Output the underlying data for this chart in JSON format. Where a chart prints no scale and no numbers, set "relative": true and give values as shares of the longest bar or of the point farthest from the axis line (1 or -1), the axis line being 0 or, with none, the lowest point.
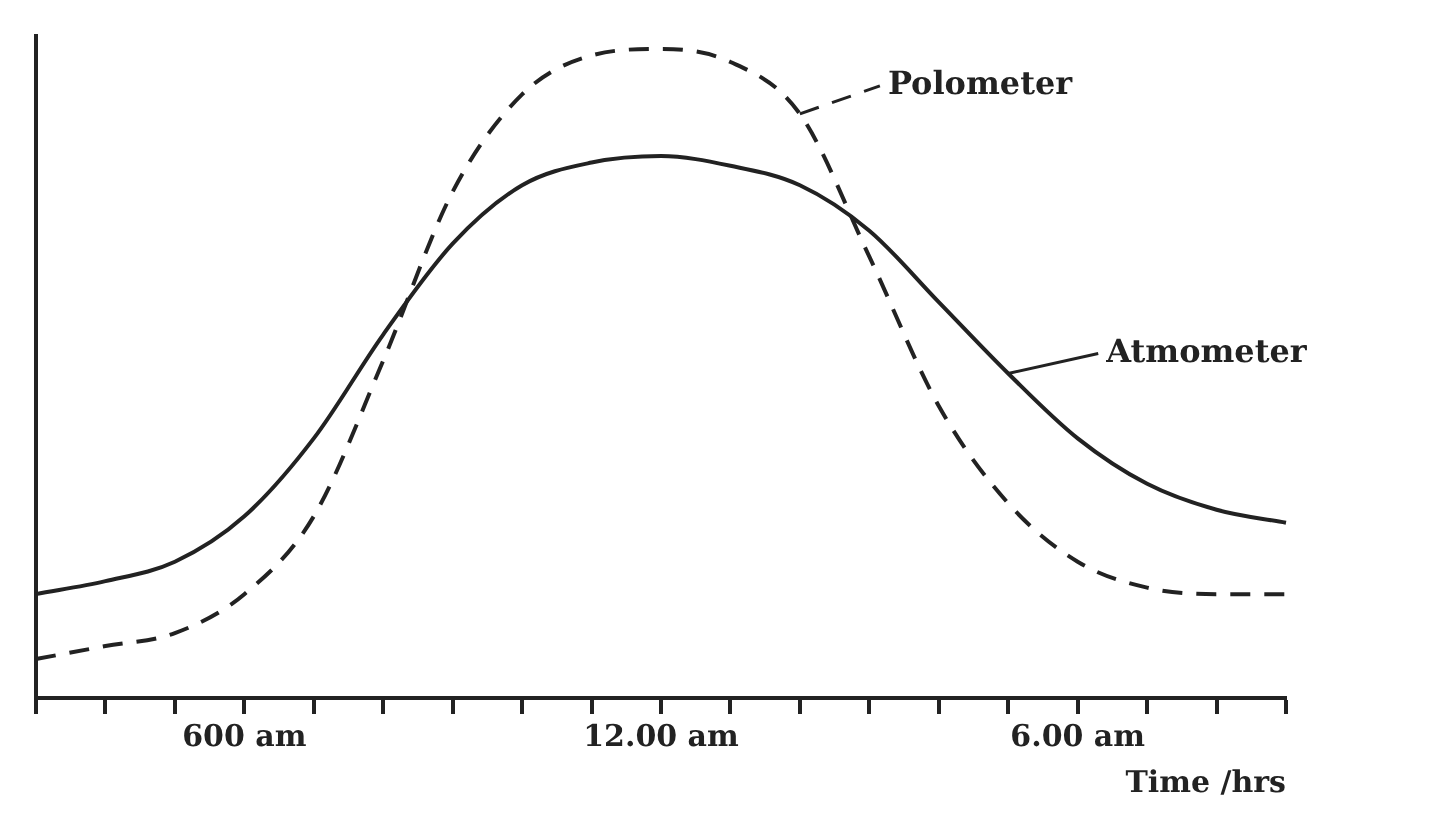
{
  "chart_data": {
    "type": "line",
    "relative": true,
    "xlabel": "Time /hrs",
    "legend": "right",
    "grid": false,
    "marker": "none",
    "tick_labels": "x",
    "categories": [
      null,
      null,
      null,
      "600 am",
      null,
      null,
      null,
      null,
      null,
      "12.00 am",
      null,
      null,
      null,
      null,
      null,
      "6.00 am",
      null,
      null,
      null
    ],
    "series": [
      {
        "name": "Polometer",
        "color": "#222222",
        "line_style": "dashed",
        "values": [
          0.06,
          0.08,
          0.1,
          0.16,
          0.28,
          0.52,
          0.78,
          0.93,
          0.99,
          1.0,
          0.98,
          0.9,
          0.68,
          0.45,
          0.3,
          0.21,
          0.17,
          0.16,
          0.16
        ]
      },
      {
        "name": "Atmometer",
        "color": "#222222",
        "line_style": "solid",
        "values": [
          0.16,
          0.18,
          0.21,
          0.28,
          0.4,
          0.56,
          0.7,
          0.79,
          0.825,
          0.835,
          0.82,
          0.79,
          0.72,
          0.61,
          0.5,
          0.4,
          0.33,
          0.29,
          0.27
        ]
      }
    ]
  }
}
